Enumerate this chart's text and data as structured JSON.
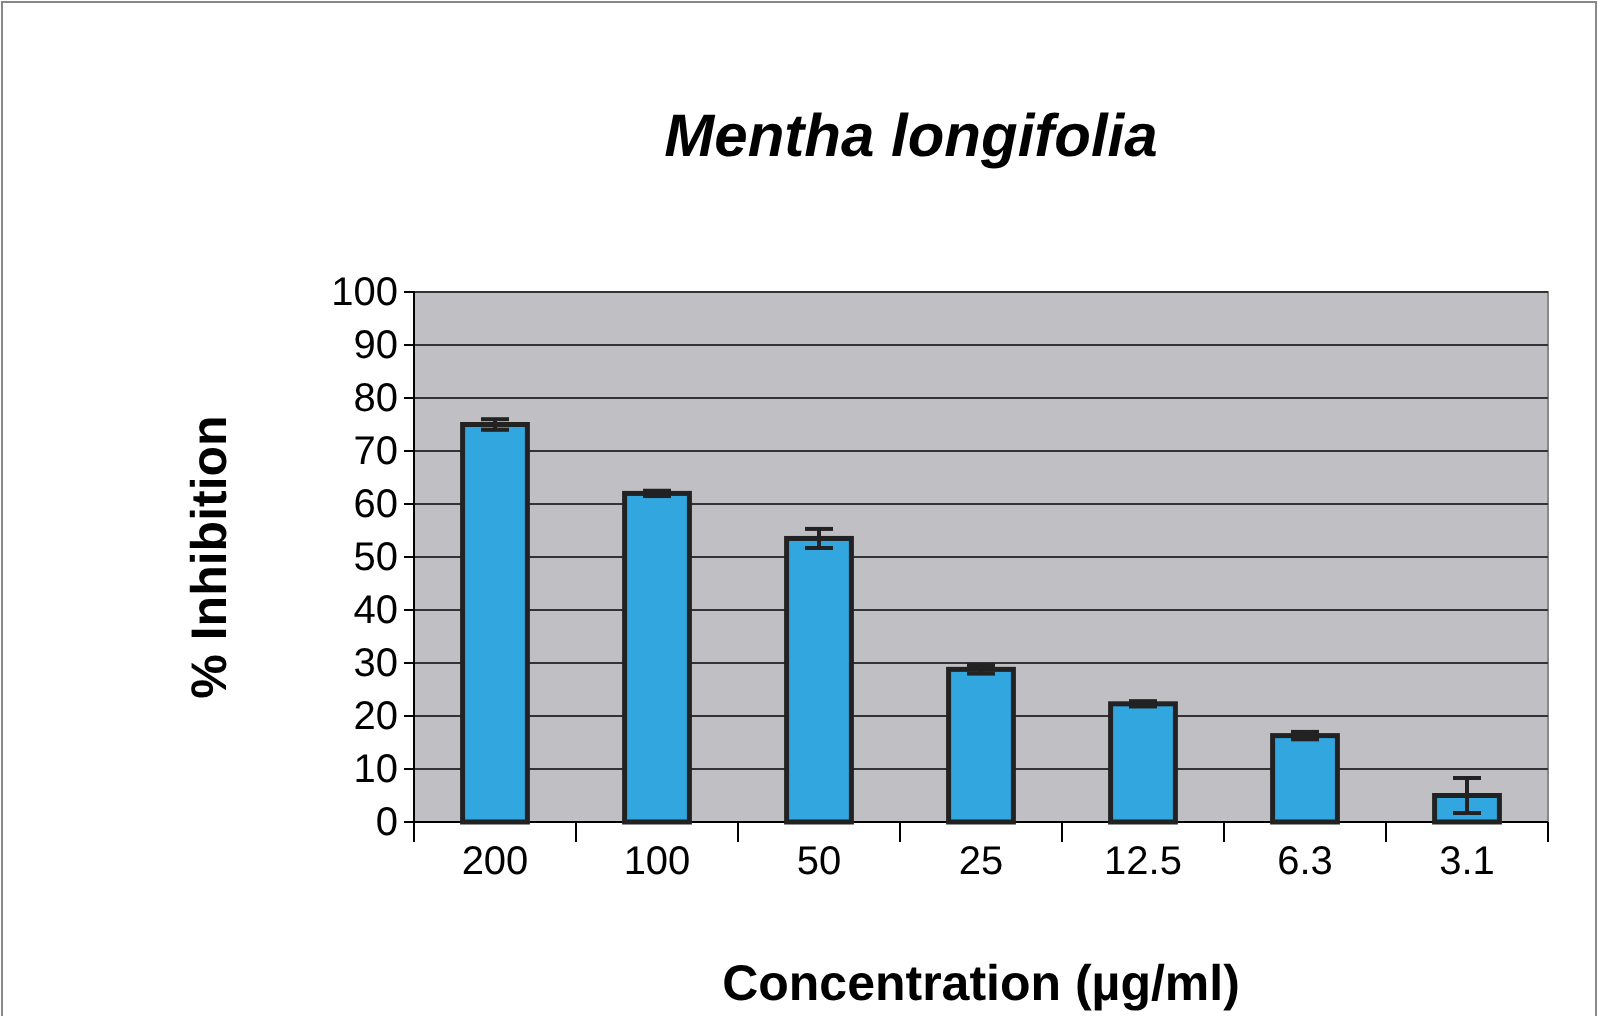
{
  "chart_data": {
    "type": "bar",
    "title": "Mentha longifolia",
    "xlabel": "Concentration (µg/ml)",
    "ylabel": "% Inhibition",
    "categories": [
      "200",
      "100",
      "50",
      "25",
      "12.5",
      "6.3",
      "3.1"
    ],
    "values": [
      75,
      62,
      53.5,
      28.8,
      22.3,
      16.3,
      5
    ],
    "errors": [
      1,
      0.5,
      1.8,
      0.8,
      0.5,
      0.7,
      3.3
    ],
    "color": "#31a6df",
    "ylim": [
      0,
      100
    ],
    "yticks": [
      0,
      10,
      20,
      30,
      40,
      50,
      60,
      70,
      80,
      90,
      100
    ],
    "grid": "y"
  }
}
